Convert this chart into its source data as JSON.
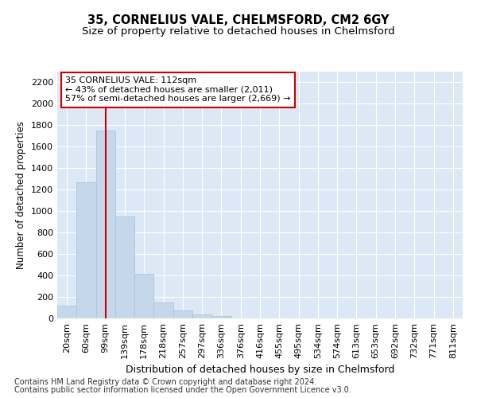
{
  "title1": "35, CORNELIUS VALE, CHELMSFORD, CM2 6GY",
  "title2": "Size of property relative to detached houses in Chelmsford",
  "xlabel": "Distribution of detached houses by size in Chelmsford",
  "ylabel": "Number of detached properties",
  "footer1": "Contains HM Land Registry data © Crown copyright and database right 2024.",
  "footer2": "Contains public sector information licensed under the Open Government Licence v3.0.",
  "annotation_line1": "35 CORNELIUS VALE: 112sqm",
  "annotation_line2": "← 43% of detached houses are smaller (2,011)",
  "annotation_line3": "57% of semi-detached houses are larger (2,669) →",
  "bar_labels": [
    "20sqm",
    "60sqm",
    "99sqm",
    "139sqm",
    "178sqm",
    "218sqm",
    "257sqm",
    "297sqm",
    "336sqm",
    "376sqm",
    "416sqm",
    "455sqm",
    "495sqm",
    "534sqm",
    "574sqm",
    "613sqm",
    "653sqm",
    "692sqm",
    "732sqm",
    "771sqm",
    "811sqm"
  ],
  "bar_values": [
    120,
    1270,
    1750,
    950,
    415,
    150,
    75,
    35,
    20,
    0,
    0,
    0,
    0,
    0,
    0,
    0,
    0,
    0,
    0,
    0,
    0
  ],
  "bar_color": "#c5d8eb",
  "bar_edge_color": "#aac4dd",
  "red_line_x": 2.0,
  "ylim": [
    0,
    2300
  ],
  "yticks": [
    0,
    200,
    400,
    600,
    800,
    1000,
    1200,
    1400,
    1600,
    1800,
    2000,
    2200
  ],
  "fig_bg_color": "#ffffff",
  "plot_bg_color": "#dce8f5",
  "grid_color": "#ffffff",
  "annotation_box_facecolor": "#ffffff",
  "annotation_box_edgecolor": "#cc0000",
  "title1_fontsize": 10.5,
  "title2_fontsize": 9.5,
  "xlabel_fontsize": 9,
  "ylabel_fontsize": 8.5,
  "tick_fontsize": 8,
  "annotation_fontsize": 8,
  "footer_fontsize": 7
}
